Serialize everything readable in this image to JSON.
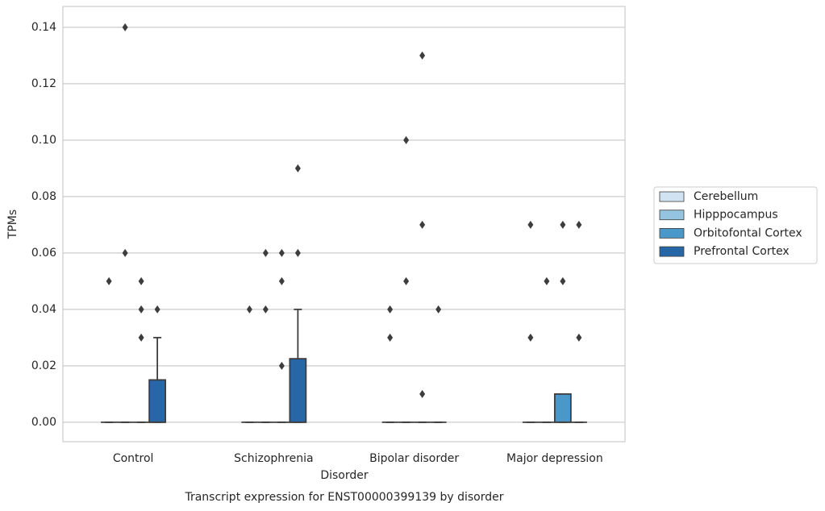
{
  "chart_data": {
    "type": "box",
    "title": "Transcript expression for ENST00000399139 by disorder",
    "x_label": "Disorder",
    "y_label": "TPMs",
    "categories": [
      "Control",
      "Schizophrenia",
      "Bipolar disorder",
      "Major depression"
    ],
    "ylim": [
      -0.0069,
      0.1474
    ],
    "yticks": [
      {
        "value": 0,
        "label": "0.00"
      },
      {
        "value": 0.02,
        "label": "0.02"
      },
      {
        "value": 0.04,
        "label": "0.04"
      },
      {
        "value": 0.06,
        "label": "0.06"
      },
      {
        "value": 0.08,
        "label": "0.08"
      },
      {
        "value": 0.1,
        "label": "0.10"
      },
      {
        "value": 0.12,
        "label": "0.12"
      },
      {
        "value": 0.14,
        "label": "0.14"
      }
    ],
    "grid": true,
    "legend": "right",
    "series": [
      {
        "name": "Cerebellum",
        "color": "#d1e2f2",
        "boxes": [
          {
            "min": 0,
            "q1": 0,
            "median": 0,
            "q3": 0,
            "max": 0,
            "outliers": [
              0.05
            ]
          },
          {
            "min": 0,
            "q1": 0,
            "median": 0,
            "q3": 0,
            "max": 0,
            "outliers": [
              0.04
            ]
          },
          {
            "min": 0,
            "q1": 0,
            "median": 0,
            "q3": 0,
            "max": 0,
            "outliers": [
              0.04,
              0.03
            ]
          },
          {
            "min": 0,
            "q1": 0,
            "median": 0,
            "q3": 0,
            "max": 0,
            "outliers": [
              0.07,
              0.03
            ]
          }
        ]
      },
      {
        "name": "Hipppocampus",
        "color": "#94c4df",
        "boxes": [
          {
            "min": 0,
            "q1": 0,
            "median": 0,
            "q3": 0,
            "max": 0,
            "outliers": [
              0.14,
              0.06
            ]
          },
          {
            "min": 0,
            "q1": 0,
            "median": 0,
            "q3": 0,
            "max": 0,
            "outliers": [
              0.06,
              0.04
            ]
          },
          {
            "min": 0,
            "q1": 0,
            "median": 0,
            "q3": 0,
            "max": 0,
            "outliers": [
              0.1,
              0.05
            ]
          },
          {
            "min": 0,
            "q1": 0,
            "median": 0,
            "q3": 0,
            "max": 0,
            "outliers": [
              0.05
            ]
          }
        ]
      },
      {
        "name": "Orbitofontal Cortex",
        "color": "#4a98c9",
        "boxes": [
          {
            "min": 0,
            "q1": 0,
            "median": 0,
            "q3": 0,
            "max": 0,
            "outliers": [
              0.05,
              0.04,
              0.03
            ]
          },
          {
            "min": 0,
            "q1": 0,
            "median": 0,
            "q3": 0,
            "max": 0,
            "outliers": [
              0.06,
              0.05,
              0.02
            ]
          },
          {
            "min": 0,
            "q1": 0,
            "median": 0,
            "q3": 0,
            "max": 0,
            "outliers": [
              0.13,
              0.07,
              0.01
            ]
          },
          {
            "min": 0,
            "q1": 0,
            "median": 0,
            "q3": 0.01,
            "max": 0.01,
            "outliers": [
              0.07,
              0.05
            ]
          }
        ]
      },
      {
        "name": "Prefrontal Cortex",
        "color": "#2767a8",
        "boxes": [
          {
            "min": 0,
            "q1": 0,
            "median": 0,
            "q3": 0.015,
            "max": 0.03,
            "outliers": [
              0.04
            ]
          },
          {
            "min": 0,
            "q1": 0,
            "median": 0,
            "q3": 0.0225,
            "max": 0.04,
            "outliers": [
              0.09,
              0.06
            ]
          },
          {
            "min": 0,
            "q1": 0,
            "median": 0,
            "q3": 0,
            "max": 0,
            "outliers": [
              0.04
            ]
          },
          {
            "min": 0,
            "q1": 0,
            "median": 0,
            "q3": 0,
            "max": 0,
            "outliers": [
              0.07,
              0.03
            ]
          }
        ]
      }
    ]
  }
}
